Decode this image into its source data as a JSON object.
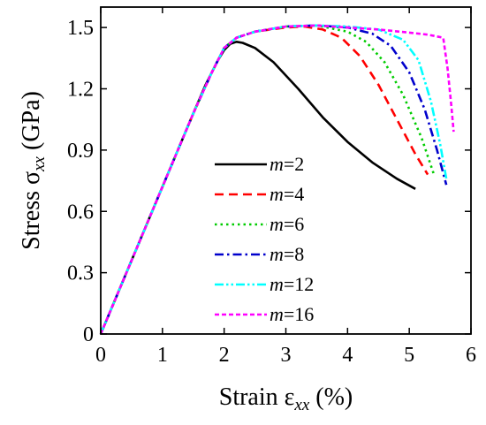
{
  "chart_data": {
    "type": "line",
    "xlabel": {
      "main": "Strain ε",
      "sub": "xx",
      "tail": " (%)"
    },
    "ylabel": {
      "main": "Stress σ",
      "sub": "xx",
      "tail": " (GPa)"
    },
    "xlim": [
      0,
      6
    ],
    "ylim": [
      0,
      1.6
    ],
    "xticks": [
      0,
      1,
      2,
      3,
      4,
      5,
      6
    ],
    "xtick_labels": [
      "0",
      "1",
      "2",
      "3",
      "4",
      "5",
      "6"
    ],
    "yticks": [
      0,
      0.3,
      0.6,
      0.9,
      1.2,
      1.5
    ],
    "ytick_labels": [
      "0",
      "0.3",
      "0.6",
      "0.9",
      "1.2",
      "1.5"
    ],
    "grid": false,
    "legend_position": "center-bottom",
    "series": [
      {
        "name": "m=2",
        "m_value": "2",
        "color": "#000000",
        "dash": "solid",
        "x": [
          0,
          0.5,
          1.0,
          1.5,
          1.7,
          1.9,
          2.0,
          2.1,
          2.2,
          2.3,
          2.5,
          2.8,
          3.2,
          3.6,
          4.0,
          4.4,
          4.8,
          5.1
        ],
        "y": [
          0,
          0.36,
          0.72,
          1.08,
          1.22,
          1.34,
          1.39,
          1.42,
          1.43,
          1.425,
          1.4,
          1.33,
          1.2,
          1.06,
          0.94,
          0.84,
          0.76,
          0.71
        ]
      },
      {
        "name": "m=4",
        "m_value": "4",
        "color": "#ff0000",
        "dash": "dashed",
        "x": [
          0,
          0.5,
          1.0,
          1.5,
          1.8,
          2.0,
          2.2,
          2.5,
          3.0,
          3.3,
          3.6,
          3.9,
          4.2,
          4.5,
          4.8,
          5.1,
          5.3
        ],
        "y": [
          0,
          0.36,
          0.72,
          1.08,
          1.28,
          1.4,
          1.45,
          1.48,
          1.5,
          1.505,
          1.49,
          1.45,
          1.36,
          1.22,
          1.05,
          0.88,
          0.78
        ]
      },
      {
        "name": "m=6",
        "m_value": "6",
        "color": "#00cc00",
        "dash": "dotted",
        "x": [
          0,
          0.5,
          1.0,
          1.5,
          1.8,
          2.0,
          2.2,
          2.5,
          3.0,
          3.5,
          4.0,
          4.3,
          4.6,
          4.9,
          5.2,
          5.4
        ],
        "y": [
          0,
          0.36,
          0.72,
          1.08,
          1.28,
          1.4,
          1.45,
          1.48,
          1.505,
          1.51,
          1.48,
          1.43,
          1.33,
          1.17,
          0.96,
          0.78
        ]
      },
      {
        "name": "m=8",
        "m_value": "8",
        "color": "#0000cc",
        "dash": "dashdot",
        "x": [
          0,
          0.5,
          1.0,
          1.5,
          1.8,
          2.0,
          2.2,
          2.5,
          3.0,
          3.5,
          4.0,
          4.4,
          4.7,
          5.0,
          5.25,
          5.45,
          5.6
        ],
        "y": [
          0,
          0.36,
          0.72,
          1.08,
          1.28,
          1.4,
          1.45,
          1.48,
          1.505,
          1.51,
          1.5,
          1.47,
          1.41,
          1.28,
          1.1,
          0.9,
          0.73
        ]
      },
      {
        "name": "m=12",
        "m_value": "12",
        "color": "#00ffff",
        "dash": "dashdotdot",
        "x": [
          0,
          0.5,
          1.0,
          1.5,
          1.8,
          2.0,
          2.2,
          2.5,
          3.0,
          3.5,
          4.0,
          4.5,
          4.9,
          5.15,
          5.35,
          5.5,
          5.6
        ],
        "y": [
          0,
          0.36,
          0.72,
          1.08,
          1.28,
          1.4,
          1.45,
          1.48,
          1.505,
          1.51,
          1.505,
          1.49,
          1.44,
          1.34,
          1.14,
          0.93,
          0.76
        ]
      },
      {
        "name": "m=16",
        "m_value": "16",
        "color": "#ff00ff",
        "dash": "shortdash",
        "x": [
          0,
          0.5,
          1.0,
          1.5,
          1.8,
          2.0,
          2.2,
          2.5,
          3.0,
          3.5,
          4.0,
          4.5,
          5.0,
          5.3,
          5.55,
          5.62,
          5.68,
          5.72
        ],
        "y": [
          0,
          0.36,
          0.72,
          1.08,
          1.28,
          1.4,
          1.45,
          1.48,
          1.505,
          1.51,
          1.5,
          1.49,
          1.475,
          1.465,
          1.45,
          1.3,
          1.12,
          0.99
        ]
      }
    ]
  }
}
